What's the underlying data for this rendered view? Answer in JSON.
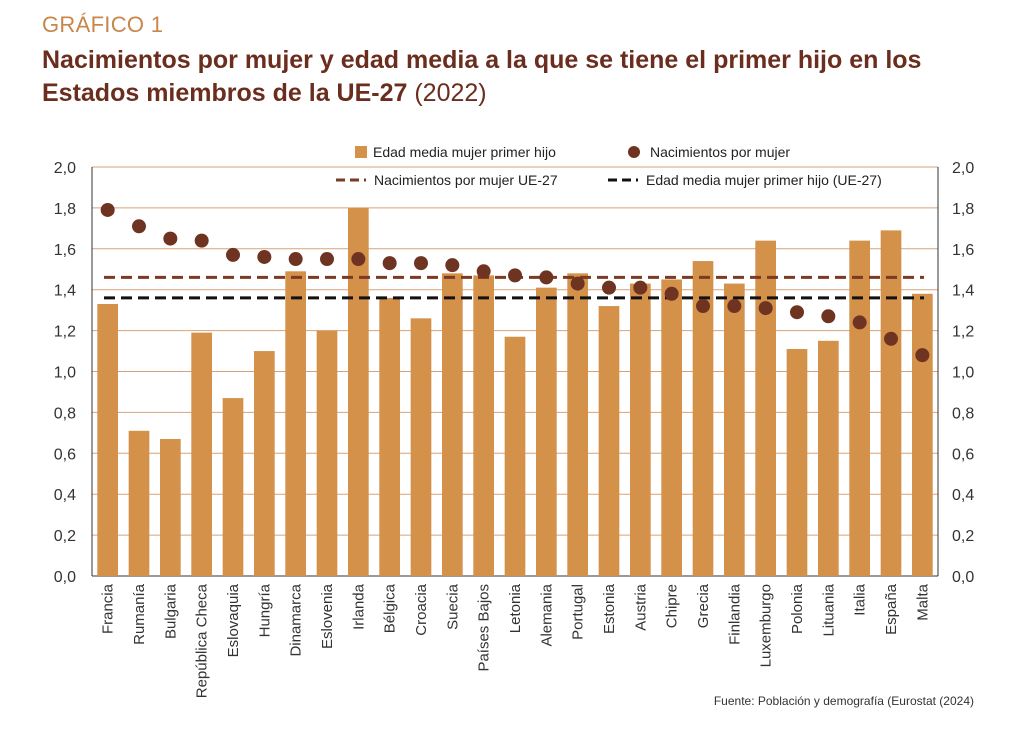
{
  "header": {
    "label": "GRÁFICO 1",
    "title": "Nacimientos por mujer y edad media a la que se tiene el primer hijo en los Estados miembros de la UE-27",
    "year": "(2022)"
  },
  "source": "Fuente: Población y demografía (Eurostat (2024)",
  "colors": {
    "bar": "#d3914a",
    "dot": "#6f3321",
    "ue_births_line": "#7a3a24",
    "ue_age_line": "#111111",
    "grid": "#d7a27a",
    "title": "#6b2d1e",
    "label": "#c7874a"
  },
  "chart_data": {
    "type": "bar",
    "categories": [
      "Francia",
      "Rumanía",
      "Bulgaria",
      "República Checa",
      "Eslovaquia",
      "Hungría",
      "Dinamarca",
      "Eslovenia",
      "Irlanda",
      "Bélgica",
      "Croacia",
      "Suecia",
      "Países Bajos",
      "Letonia",
      "Alemania",
      "Portugal",
      "Estonia",
      "Austria",
      "Chipre",
      "Grecia",
      "Finlandia",
      "Luxemburgo",
      "Polonia",
      "Lituania",
      "Italia",
      "España",
      "Malta"
    ],
    "series": [
      {
        "name": "Edad media mujer primer hijo",
        "kind": "bar",
        "values": [
          1.33,
          0.71,
          0.67,
          1.19,
          0.87,
          1.1,
          1.49,
          1.2,
          1.8,
          1.36,
          1.26,
          1.48,
          1.47,
          1.17,
          1.41,
          1.48,
          1.32,
          1.43,
          1.45,
          1.54,
          1.43,
          1.64,
          1.11,
          1.15,
          1.64,
          1.69,
          1.38
        ]
      },
      {
        "name": "Nacimientos por mujer",
        "kind": "scatter",
        "values": [
          1.79,
          1.71,
          1.65,
          1.64,
          1.57,
          1.56,
          1.55,
          1.55,
          1.55,
          1.53,
          1.53,
          1.52,
          1.49,
          1.47,
          1.46,
          1.43,
          1.41,
          1.41,
          1.38,
          1.32,
          1.32,
          1.31,
          1.29,
          1.27,
          1.24,
          1.16,
          1.08
        ]
      },
      {
        "name": "Nacimientos por mujer UE-27",
        "kind": "hline",
        "value": 1.46
      },
      {
        "name": "Edad media mujer primer hijo (UE-27)",
        "kind": "hline",
        "value": 1.36
      }
    ],
    "yticks": [
      "0,0",
      "0,2",
      "0,4",
      "0,6",
      "0,8",
      "1,0",
      "1,2",
      "1,4",
      "1,6",
      "1,8",
      "2,0"
    ],
    "ylim": [
      0,
      2.0
    ],
    "grid": true,
    "legend_position": "top"
  }
}
